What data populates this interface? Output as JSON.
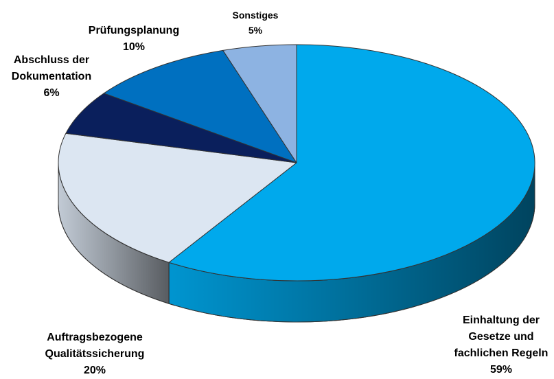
{
  "chart_data": {
    "type": "pie3d",
    "categories": [
      "Einhaltung der Gesetze und fachlichen Regeln",
      "Auftragsbezogene Qualitätssicherung",
      "Abschluss der Dokumentation",
      "Prüfungsplanung",
      "Sonstiges"
    ],
    "values": [
      59,
      20,
      6,
      10,
      5
    ],
    "value_labels": [
      "59%",
      "20%",
      "6%",
      "10%",
      "5%"
    ],
    "colors": [
      "#00a9ec",
      "#dce6f2",
      "#0a1f5c",
      "#0070c0",
      "#8db3e2"
    ]
  }
}
